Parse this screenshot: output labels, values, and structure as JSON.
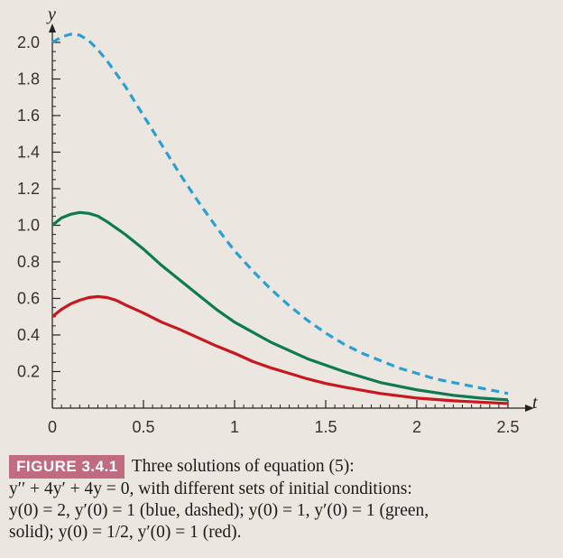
{
  "chart_data": {
    "type": "line",
    "title": "",
    "xlabel": "t",
    "ylabel": "y",
    "xlim": [
      0,
      2.5
    ],
    "ylim": [
      0,
      2.0
    ],
    "x_ticks": [
      {
        "value": 0,
        "label": "0"
      },
      {
        "value": 0.5,
        "label": "0.5"
      },
      {
        "value": 1,
        "label": "1"
      },
      {
        "value": 1.5,
        "label": "1.5"
      },
      {
        "value": 2,
        "label": "2"
      },
      {
        "value": 2.5,
        "label": "2.5"
      }
    ],
    "y_ticks": [
      {
        "value": 0.2,
        "label": "0.2"
      },
      {
        "value": 0.4,
        "label": "0.4"
      },
      {
        "value": 0.6,
        "label": "0.6"
      },
      {
        "value": 0.8,
        "label": "0.8"
      },
      {
        "value": 1.0,
        "label": "1.0"
      },
      {
        "value": 1.2,
        "label": "1.2"
      },
      {
        "value": 1.4,
        "label": "1.4"
      },
      {
        "value": 1.6,
        "label": "1.6"
      },
      {
        "value": 1.8,
        "label": "1.8"
      },
      {
        "value": 2.0,
        "label": "2.0"
      }
    ],
    "grid": false,
    "series": [
      {
        "color": "#2a9fd6",
        "dash": "dashed",
        "points": [
          [
            0,
            2.0
          ],
          [
            0.05,
            2.03
          ],
          [
            0.1,
            2.045
          ],
          [
            0.15,
            2.04
          ],
          [
            0.2,
            2.01
          ],
          [
            0.25,
            1.96
          ],
          [
            0.3,
            1.9
          ],
          [
            0.4,
            1.76
          ],
          [
            0.5,
            1.6
          ],
          [
            0.6,
            1.44
          ],
          [
            0.7,
            1.28
          ],
          [
            0.8,
            1.13
          ],
          [
            0.9,
            0.99
          ],
          [
            1.0,
            0.86
          ],
          [
            1.1,
            0.75
          ],
          [
            1.2,
            0.65
          ],
          [
            1.3,
            0.56
          ],
          [
            1.4,
            0.48
          ],
          [
            1.5,
            0.41
          ],
          [
            1.6,
            0.35
          ],
          [
            1.7,
            0.3
          ],
          [
            1.8,
            0.26
          ],
          [
            1.9,
            0.22
          ],
          [
            2.0,
            0.19
          ],
          [
            2.1,
            0.16
          ],
          [
            2.2,
            0.14
          ],
          [
            2.3,
            0.12
          ],
          [
            2.4,
            0.1
          ],
          [
            2.5,
            0.08
          ]
        ]
      },
      {
        "color": "#0e7a52",
        "dash": "solid",
        "points": [
          [
            0,
            1.0
          ],
          [
            0.05,
            1.04
          ],
          [
            0.1,
            1.06
          ],
          [
            0.15,
            1.07
          ],
          [
            0.2,
            1.065
          ],
          [
            0.25,
            1.05
          ],
          [
            0.3,
            1.02
          ],
          [
            0.4,
            0.95
          ],
          [
            0.5,
            0.87
          ],
          [
            0.6,
            0.78
          ],
          [
            0.7,
            0.7
          ],
          [
            0.8,
            0.62
          ],
          [
            0.9,
            0.54
          ],
          [
            1.0,
            0.47
          ],
          [
            1.2,
            0.36
          ],
          [
            1.4,
            0.27
          ],
          [
            1.6,
            0.2
          ],
          [
            1.8,
            0.14
          ],
          [
            2.0,
            0.1
          ],
          [
            2.2,
            0.07
          ],
          [
            2.35,
            0.055
          ],
          [
            2.5,
            0.045
          ]
        ]
      },
      {
        "color": "#c8171e",
        "dash": "solid",
        "points": [
          [
            0,
            0.5
          ],
          [
            0.05,
            0.54
          ],
          [
            0.1,
            0.57
          ],
          [
            0.15,
            0.59
          ],
          [
            0.2,
            0.605
          ],
          [
            0.25,
            0.61
          ],
          [
            0.3,
            0.605
          ],
          [
            0.35,
            0.59
          ],
          [
            0.4,
            0.565
          ],
          [
            0.5,
            0.52
          ],
          [
            0.6,
            0.47
          ],
          [
            0.7,
            0.43
          ],
          [
            0.8,
            0.385
          ],
          [
            0.9,
            0.34
          ],
          [
            1.0,
            0.3
          ],
          [
            1.1,
            0.255
          ],
          [
            1.2,
            0.22
          ],
          [
            1.3,
            0.19
          ],
          [
            1.4,
            0.16
          ],
          [
            1.5,
            0.135
          ],
          [
            1.6,
            0.115
          ],
          [
            1.8,
            0.08
          ],
          [
            2.0,
            0.055
          ],
          [
            2.2,
            0.04
          ],
          [
            2.4,
            0.03
          ],
          [
            2.5,
            0.025
          ]
        ]
      }
    ]
  },
  "caption": {
    "label": "FIGURE 3.4.1",
    "line1": "Three solutions of equation (5):",
    "line2": "y′′ + 4y′ + 4y = 0, with different sets of initial conditions:",
    "line3": "y(0) = 2,  y′(0) = 1  (blue,  dashed);  y(0) = 1,  y′(0) = 1  (green,",
    "line4": "solid); y(0) = 1/2, y′(0) = 1 (red)."
  }
}
